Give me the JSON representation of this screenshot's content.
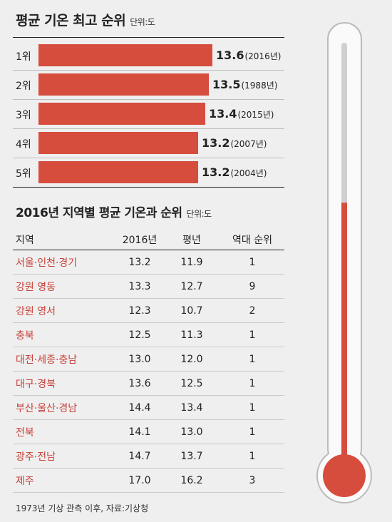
{
  "section1": {
    "title": "평균 기온 최고 순위",
    "unit": "단위:도"
  },
  "chart_data": [
    {
      "type": "bar",
      "title": "평균 기온 최고 순위",
      "unit": "단위:도",
      "categories": [
        "1위",
        "2위",
        "3위",
        "4위",
        "5위"
      ],
      "values": [
        13.6,
        13.5,
        13.4,
        13.2,
        13.2
      ],
      "year_labels": [
        "(2016년)",
        "(1988년)",
        "(2015년)",
        "(2007년)",
        "(2004년)"
      ],
      "value_labels": [
        "13.6",
        "13.5",
        "13.4",
        "13.2",
        "13.2"
      ],
      "orientation": "horizontal"
    },
    {
      "type": "table",
      "title": "2016년 지역별 평균 기온과 순위",
      "unit": "단위:도",
      "columns": [
        "지역",
        "2016년",
        "평년",
        "역대 순위"
      ],
      "rows": [
        [
          "서울·인천·경기",
          "13.2",
          "11.9",
          "1"
        ],
        [
          "강원 영동",
          "13.3",
          "12.7",
          "9"
        ],
        [
          "강원 영서",
          "12.3",
          "10.7",
          "2"
        ],
        [
          "충북",
          "12.5",
          "11.3",
          "1"
        ],
        [
          "대전·세종·충남",
          "13.0",
          "12.0",
          "1"
        ],
        [
          "대구·경북",
          "13.6",
          "12.5",
          "1"
        ],
        [
          "부산·울산·경남",
          "14.4",
          "13.4",
          "1"
        ],
        [
          "전북",
          "14.1",
          "13.0",
          "1"
        ],
        [
          "광주·전남",
          "14.7",
          "13.7",
          "1"
        ],
        [
          "제주",
          "17.0",
          "16.2",
          "3"
        ]
      ]
    }
  ],
  "section2": {
    "title": "2016년 지역별 평균 기온과 순위",
    "unit": "단위:도"
  },
  "footer": "1973년 기상 관측 이후, 자료:기상청",
  "colors": {
    "accent": "#d64c3d",
    "region_text": "#c8423a"
  },
  "thermometer": {
    "icon": "thermometer-icon",
    "level": 0.62
  }
}
